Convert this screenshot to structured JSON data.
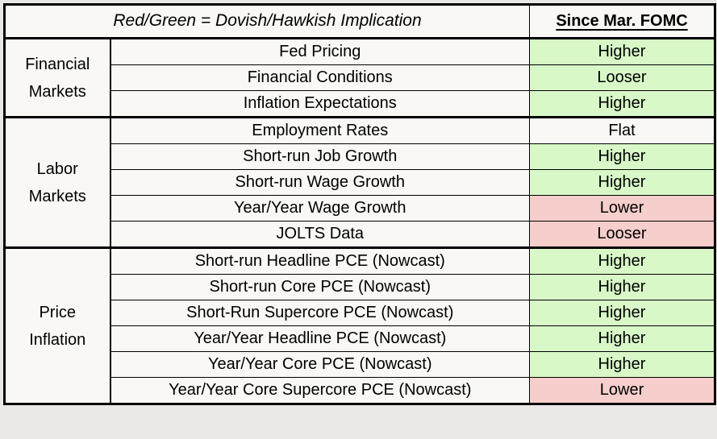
{
  "colors": {
    "page_bg": "#e9e8e6",
    "cell_bg": "#f9f8f5",
    "green": "#d8f8c8",
    "red": "#f6cecb",
    "border": "#000000",
    "text": "#000000"
  },
  "header": {
    "legend": "Red/Green = Dovish/Hawkish Implication",
    "value_column": "Since Mar. FOMC"
  },
  "groups": [
    {
      "label": "Financial Markets",
      "rows": [
        {
          "metric": "Fed Pricing",
          "value": "Higher",
          "tone": "green"
        },
        {
          "metric": "Financial Conditions",
          "value": "Looser",
          "tone": "green"
        },
        {
          "metric": "Inflation Expectations",
          "value": "Higher",
          "tone": "green"
        }
      ]
    },
    {
      "label": "Labor Markets",
      "rows": [
        {
          "metric": "Employment Rates",
          "value": "Flat",
          "tone": "neutral"
        },
        {
          "metric": "Short-run Job Growth",
          "value": "Higher",
          "tone": "green"
        },
        {
          "metric": "Short-run Wage Growth",
          "value": "Higher",
          "tone": "green"
        },
        {
          "metric": "Year/Year Wage Growth",
          "value": "Lower",
          "tone": "red"
        },
        {
          "metric": "JOLTS Data",
          "value": "Looser",
          "tone": "red"
        }
      ]
    },
    {
      "label": "Price Inflation",
      "rows": [
        {
          "metric": "Short-run Headline PCE (Nowcast)",
          "value": "Higher",
          "tone": "green"
        },
        {
          "metric": "Short-run Core PCE (Nowcast)",
          "value": "Higher",
          "tone": "green"
        },
        {
          "metric": "Short-Run Supercore PCE (Nowcast)",
          "value": "Higher",
          "tone": "green"
        },
        {
          "metric": "Year/Year Headline PCE (Nowcast)",
          "value": "Higher",
          "tone": "green"
        },
        {
          "metric": "Year/Year Core PCE (Nowcast)",
          "value": "Higher",
          "tone": "green"
        },
        {
          "metric": "Year/Year Core Supercore PCE (Nowcast)",
          "value": "Lower",
          "tone": "red"
        }
      ]
    }
  ]
}
